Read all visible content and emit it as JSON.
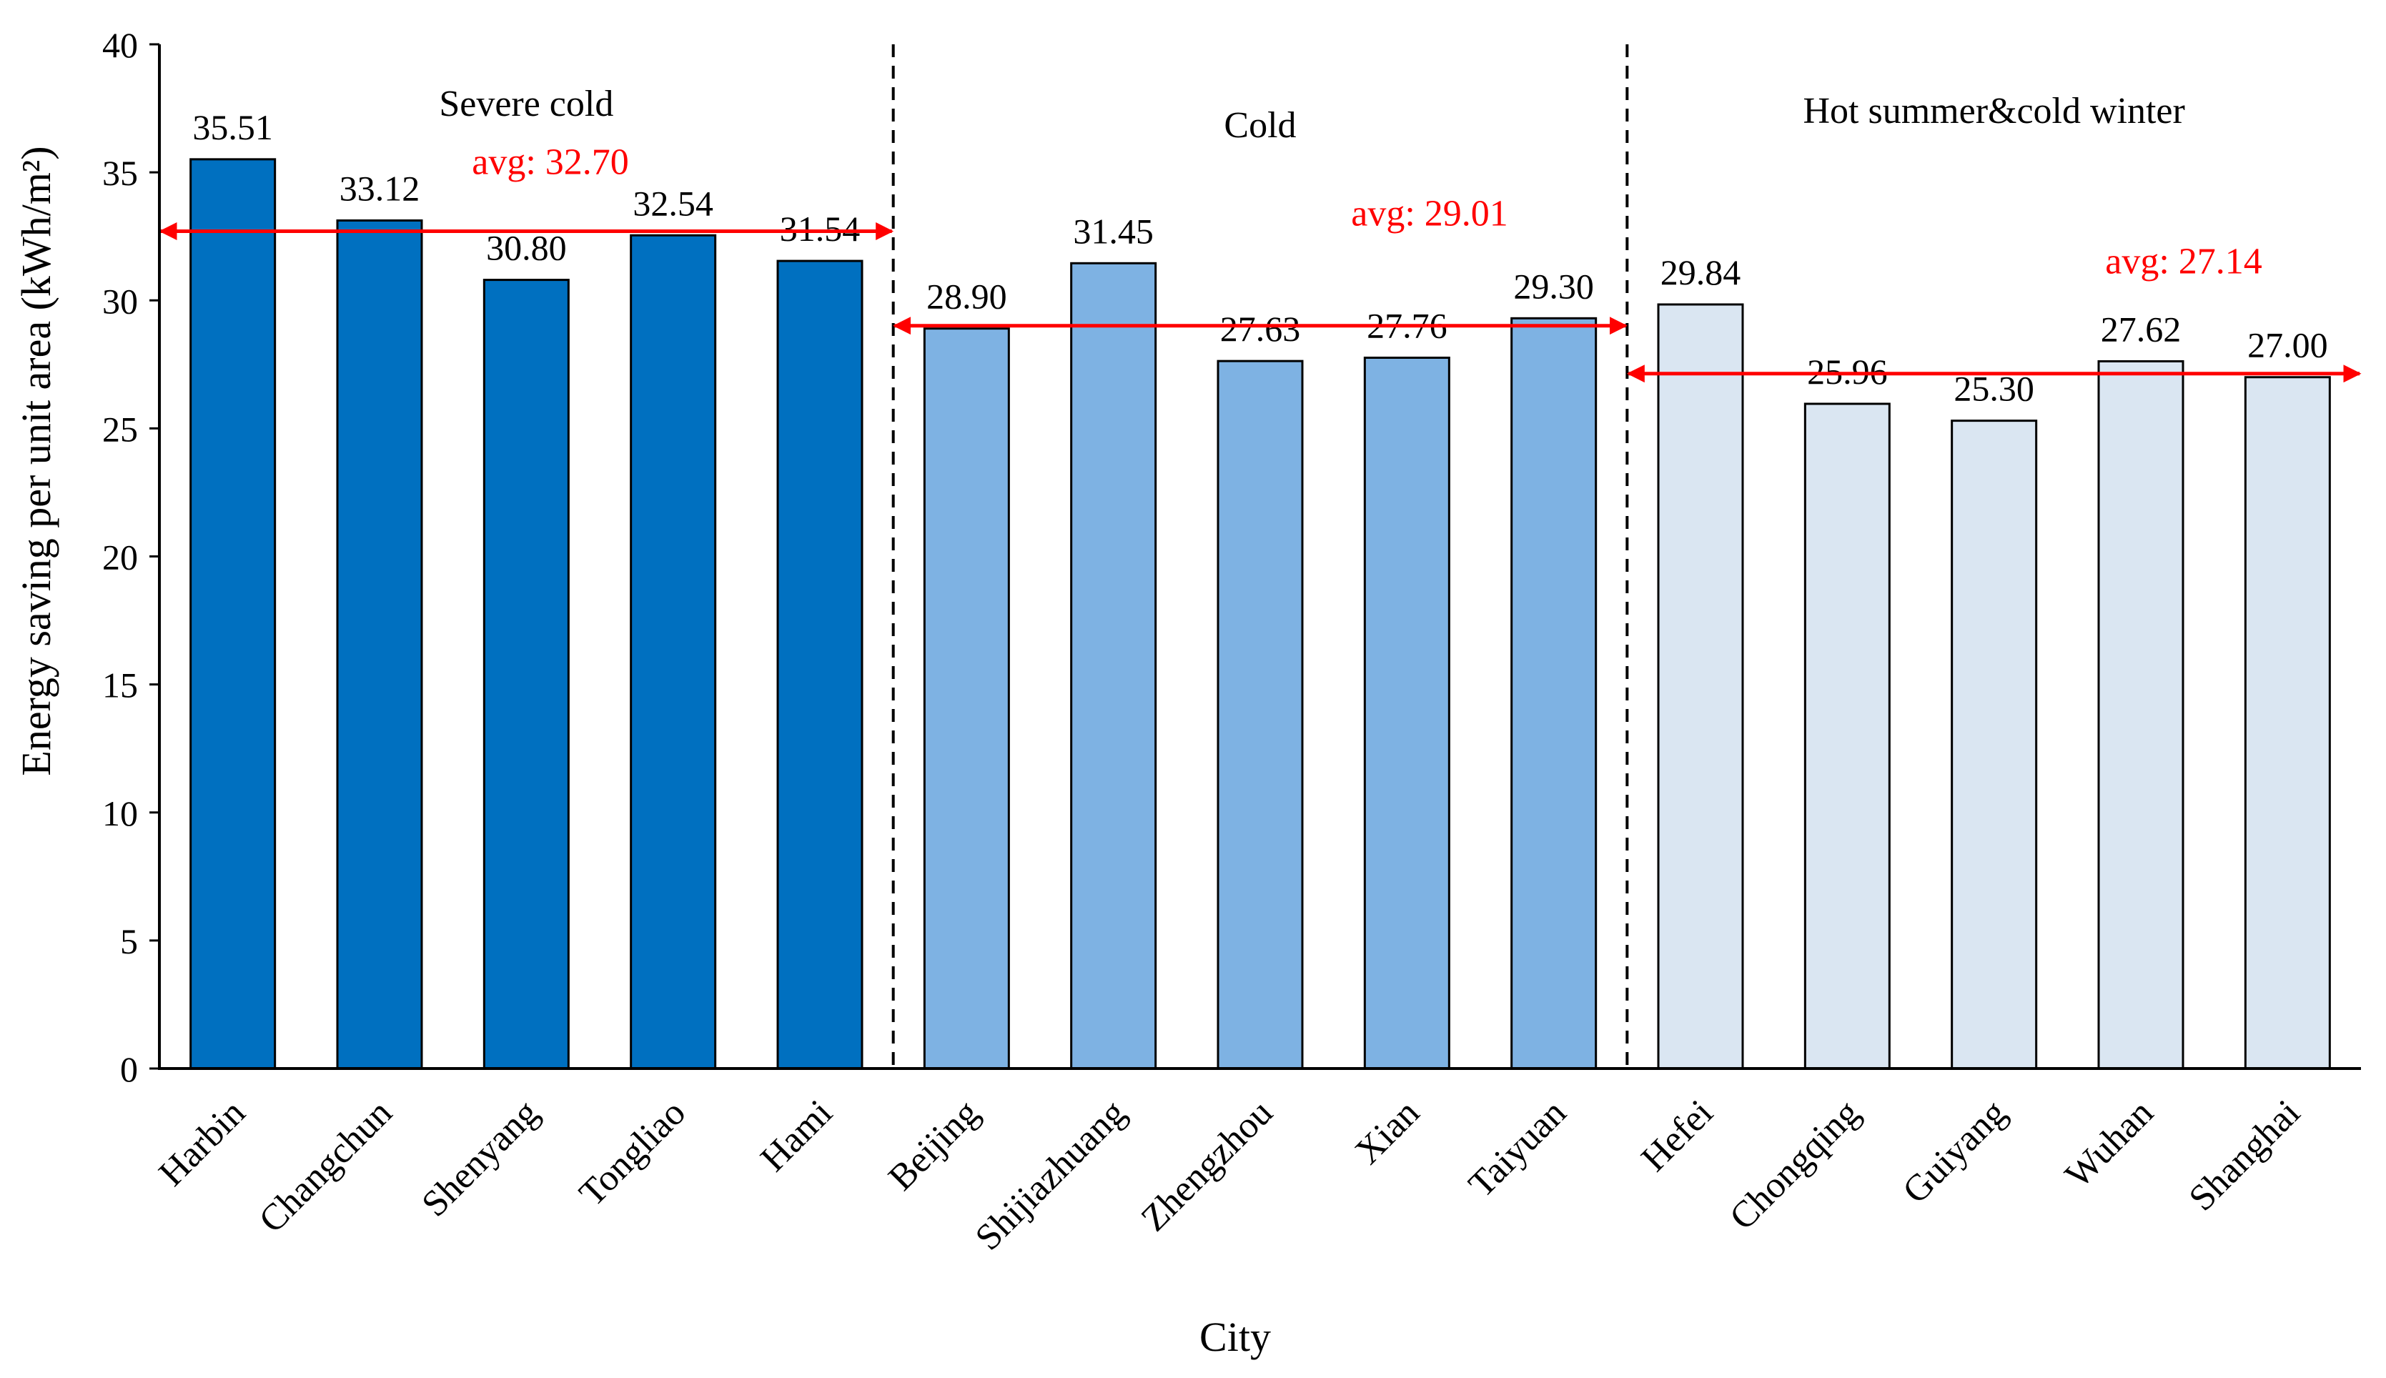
{
  "chart_data": {
    "type": "bar",
    "title": "",
    "xlabel": "City",
    "ylabel": "Energy saving per unit area (kWh/m²)",
    "ylim": [
      0,
      40
    ],
    "yticks": [
      0,
      5,
      10,
      15,
      20,
      25,
      30,
      35,
      40
    ],
    "grid": false,
    "categories": [
      "Harbin",
      "Changchun",
      "Shenyang",
      "Tongliao",
      "Hami",
      "Beijing",
      "Shijiazhuang",
      "Zhengzhou",
      "Xian",
      "Taiyuan",
      "Hefei",
      "Chongqing",
      "Guiyang",
      "Wuhan",
      "Shanghai"
    ],
    "values": [
      35.51,
      33.12,
      30.8,
      32.54,
      31.54,
      28.9,
      31.45,
      27.63,
      27.76,
      29.3,
      29.84,
      25.96,
      25.3,
      27.62,
      27.0
    ],
    "value_labels": [
      "35.51",
      "33.12",
      "30.80",
      "32.54",
      "31.54",
      "28.90",
      "31.45",
      "27.63",
      "27.76",
      "29.30",
      "29.84",
      "25.96",
      "25.30",
      "27.62",
      "27.00"
    ],
    "groups": [
      {
        "name": "Severe cold",
        "start": 0,
        "end": 4,
        "color": "#0070C0",
        "avg": 32.7,
        "avg_prefix": "avg:",
        "avg_value": "32.70"
      },
      {
        "name": "Cold",
        "start": 5,
        "end": 9,
        "color": "#7EB2E3",
        "avg": 29.01,
        "avg_prefix": "avg:",
        "avg_value": "29.01"
      },
      {
        "name": "Hot summer&cold winter",
        "start": 10,
        "end": 14,
        "color": "#DAE6F2",
        "avg": 27.14,
        "avg_prefix": "avg:",
        "avg_value": "27.14"
      }
    ],
    "avg_line_color": "#FF0000"
  }
}
